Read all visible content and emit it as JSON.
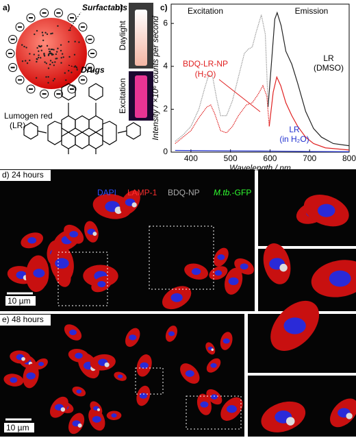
{
  "panel_a": {
    "label": "a)",
    "surfactants": "Surfactants",
    "drugs": "Drugs",
    "dye": [
      "Lumogen red",
      "(LR)"
    ]
  },
  "panel_b": {
    "label": "b)",
    "top_photo": "Daylight",
    "bottom_photo": "Excitation"
  },
  "chart_data": {
    "type": "line",
    "label": "c)",
    "x_label": "Wavelength / nm",
    "y_label": "Intensity / ×10⁶ counts per second",
    "xlim": [
      350,
      800
    ],
    "xticks": [
      400,
      500,
      600,
      700,
      800
    ],
    "ylim": [
      0,
      6.9
    ],
    "yticks": [
      0,
      2,
      4,
      6
    ],
    "annotations": {
      "excitation": "Excitation",
      "emission": "Emission",
      "lr_dmso": [
        "LR",
        "(DMSO)"
      ],
      "np": [
        "BDQ-LR-NP",
        "(H₂O)"
      ],
      "lr_water": [
        "LR",
        "(in H₂O)"
      ]
    },
    "series": [
      {
        "color": "#9a9a9a",
        "dash": true,
        "x": [
          360,
          380,
          400,
          420,
          435,
          445,
          455,
          465,
          475,
          490,
          505,
          520,
          535,
          545,
          555,
          565,
          578,
          588,
          595
        ],
        "values": [
          0.5,
          0.8,
          1.2,
          2.0,
          3.0,
          3.6,
          3.5,
          2.5,
          1.7,
          1.7,
          2.4,
          3.5,
          4.6,
          4.8,
          4.9,
          5.6,
          6.4,
          5.5,
          2.2
        ]
      },
      {
        "color": "#222222",
        "dash": false,
        "x": [
          595,
          605,
          612,
          618,
          628,
          640,
          655,
          670,
          690,
          710,
          730,
          760,
          800
        ],
        "values": [
          2.1,
          4.5,
          6.2,
          6.5,
          5.9,
          4.7,
          4.1,
          3.2,
          1.9,
          1.1,
          0.7,
          0.4,
          0.3
        ]
      },
      {
        "color": "#e02020",
        "dash": true,
        "x": [
          360,
          380,
          400,
          420,
          440,
          450,
          460,
          475,
          490,
          505,
          520,
          540,
          555,
          570,
          582,
          592,
          598
        ],
        "values": [
          0.4,
          0.7,
          1.0,
          1.6,
          2.1,
          2.2,
          1.8,
          1.0,
          0.9,
          1.2,
          1.7,
          2.2,
          2.3,
          2.7,
          3.1,
          2.6,
          1.2
        ]
      },
      {
        "color": "#e02020",
        "dash": false,
        "x": [
          598,
          608,
          617,
          627,
          640,
          655,
          670,
          690,
          710,
          740,
          800
        ],
        "values": [
          1.2,
          2.8,
          3.5,
          3.1,
          2.3,
          1.7,
          1.2,
          0.7,
          0.4,
          0.2,
          0.1
        ]
      },
      {
        "color": "#2030d0",
        "dash": false,
        "x": [
          360,
          500,
          600,
          700,
          800
        ],
        "values": [
          0.08,
          0.06,
          0.05,
          0.03,
          0.02
        ]
      }
    ]
  },
  "panel_d": {
    "label": "d) 24 hours",
    "stains": {
      "dapi": "DAPI",
      "lamp": "LAMP-1",
      "np": "BDQ-NP",
      "mtb": [
        "M.tb.",
        "-GFP"
      ]
    },
    "scale": "10 µm"
  },
  "panel_e": {
    "label": "e) 48 hours",
    "scale": "10 µm"
  }
}
